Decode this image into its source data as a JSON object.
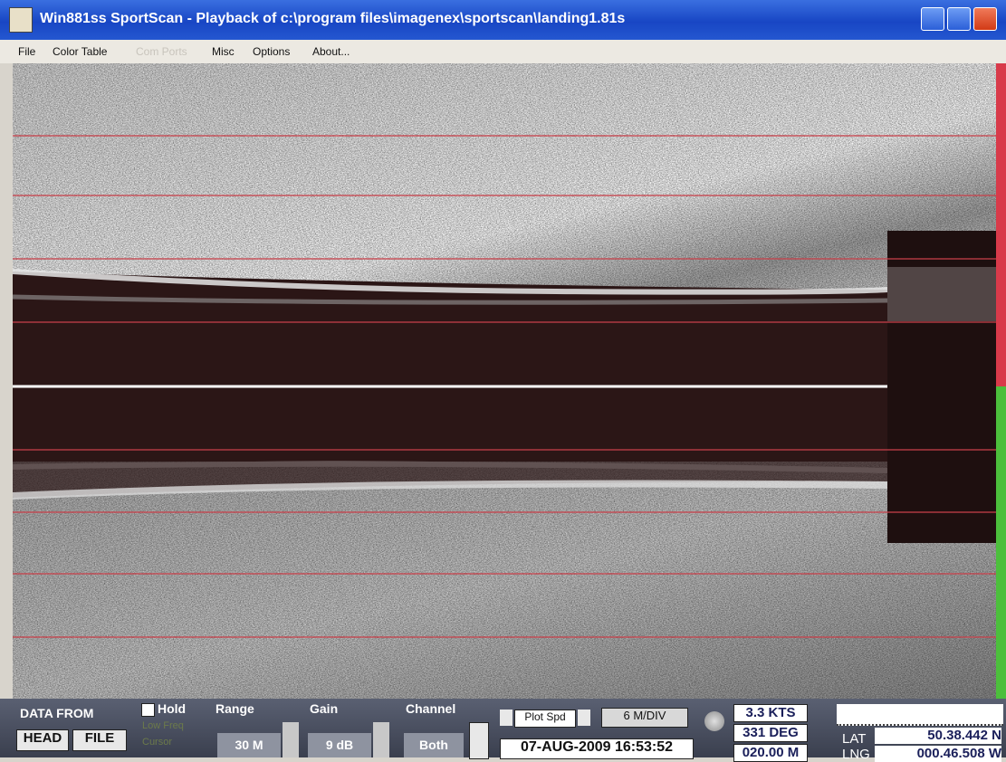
{
  "window": {
    "title": "Win881ss SportScan - Playback of c:\\program files\\imagenex\\sportscan\\landing1.81s",
    "menu": [
      "File",
      "Color Table",
      "Com Ports",
      "Misc",
      "Options",
      "About..."
    ]
  },
  "controls": {
    "data_from": {
      "label": "DATA FROM",
      "buttons": [
        "HEAD",
        "FILE"
      ]
    },
    "hold": "Hold",
    "low_freq": "Low Freq",
    "cursor": "Cursor",
    "range": {
      "label": "Range",
      "value": "30 M"
    },
    "gain": {
      "label": "Gain",
      "value": "9 dB"
    },
    "channel": {
      "label": "Channel",
      "value": "Both"
    },
    "plot_speed": {
      "label": "Plot Spd",
      "value": "6 M/DIV"
    },
    "datetime": "07-AUG-2009 16:53:52",
    "speed": "3.3 KTS",
    "heading": "331 DEG",
    "depth": "020.00 M",
    "lat_label": "LAT",
    "lng_label": "LNG",
    "lat": "50.38.442 N",
    "lng": "000.46.508 W"
  }
}
